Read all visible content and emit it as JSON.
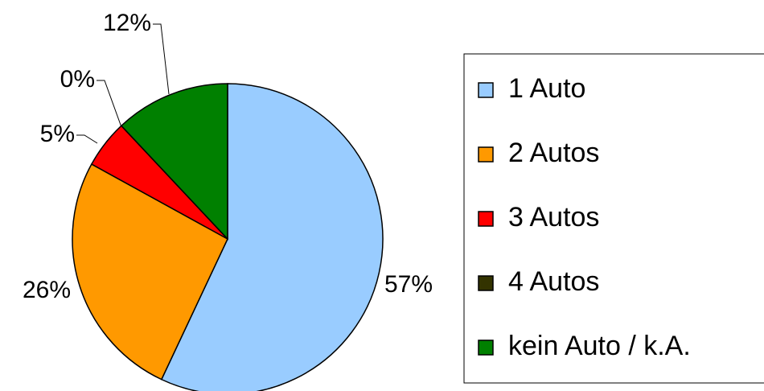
{
  "chart_data": {
    "type": "pie",
    "categories": [
      "1 Auto",
      "2 Autos",
      "3 Autos",
      "4 Autos",
      "kein Auto / k.A."
    ],
    "values": [
      57,
      26,
      5,
      0,
      12
    ],
    "value_labels": [
      "57%",
      "26%",
      "5%",
      "0%",
      "12%"
    ],
    "colors": [
      "#99ccff",
      "#ff9900",
      "#ff0000",
      "#333300",
      "#008000"
    ],
    "legend": "right"
  }
}
